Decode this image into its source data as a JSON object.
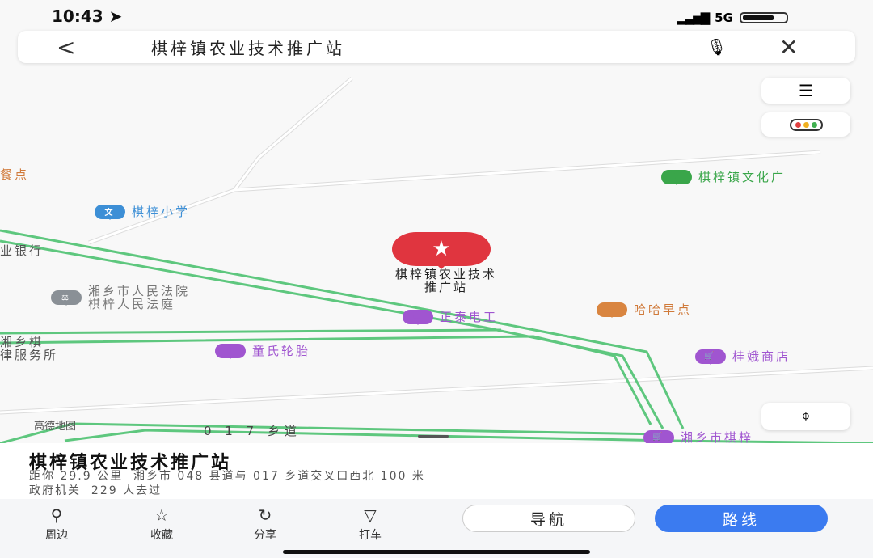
{
  "status": {
    "time": "10:43",
    "network": "5G"
  },
  "search": {
    "query": "棋梓镇农业技术推广站"
  },
  "map": {
    "selected_poi": {
      "line1": "棋梓镇农业技术",
      "line2": "推广站"
    },
    "pois": [
      {
        "name": "餐点"
      },
      {
        "name": "棋梓小学"
      },
      {
        "name": "业银行"
      },
      {
        "name_line1": "湘乡市人民法院",
        "name_line2": "棋梓人民法庭"
      },
      {
        "name_line1": "湘乡棋",
        "name_line2": "律服务所"
      },
      {
        "name": "童氏轮胎"
      },
      {
        "name": "正泰电工"
      },
      {
        "name": "哈哈早点"
      },
      {
        "name": "桂娥商店"
      },
      {
        "name": "棋梓镇文化广"
      },
      {
        "name": "湘乡市棋梓"
      }
    ],
    "road_label": "0 1 7 乡道",
    "watermark": "高德地图"
  },
  "card": {
    "title": "棋梓镇农业技术推广站",
    "distance": "距你 29.9 公里",
    "address": "湘乡市 048 县道与 017 乡道交叉口西北 100 米",
    "category": "政府机关",
    "visits": "229 人去过"
  },
  "actions": [
    {
      "label": "周边"
    },
    {
      "label": "收藏"
    },
    {
      "label": "分享"
    },
    {
      "label": "打车"
    }
  ],
  "buttons": {
    "navigate": "导航",
    "route": "路线"
  },
  "colors": {
    "primary": "#3b7bf0",
    "pin": "#e0353f",
    "road": "#5ec77e"
  }
}
